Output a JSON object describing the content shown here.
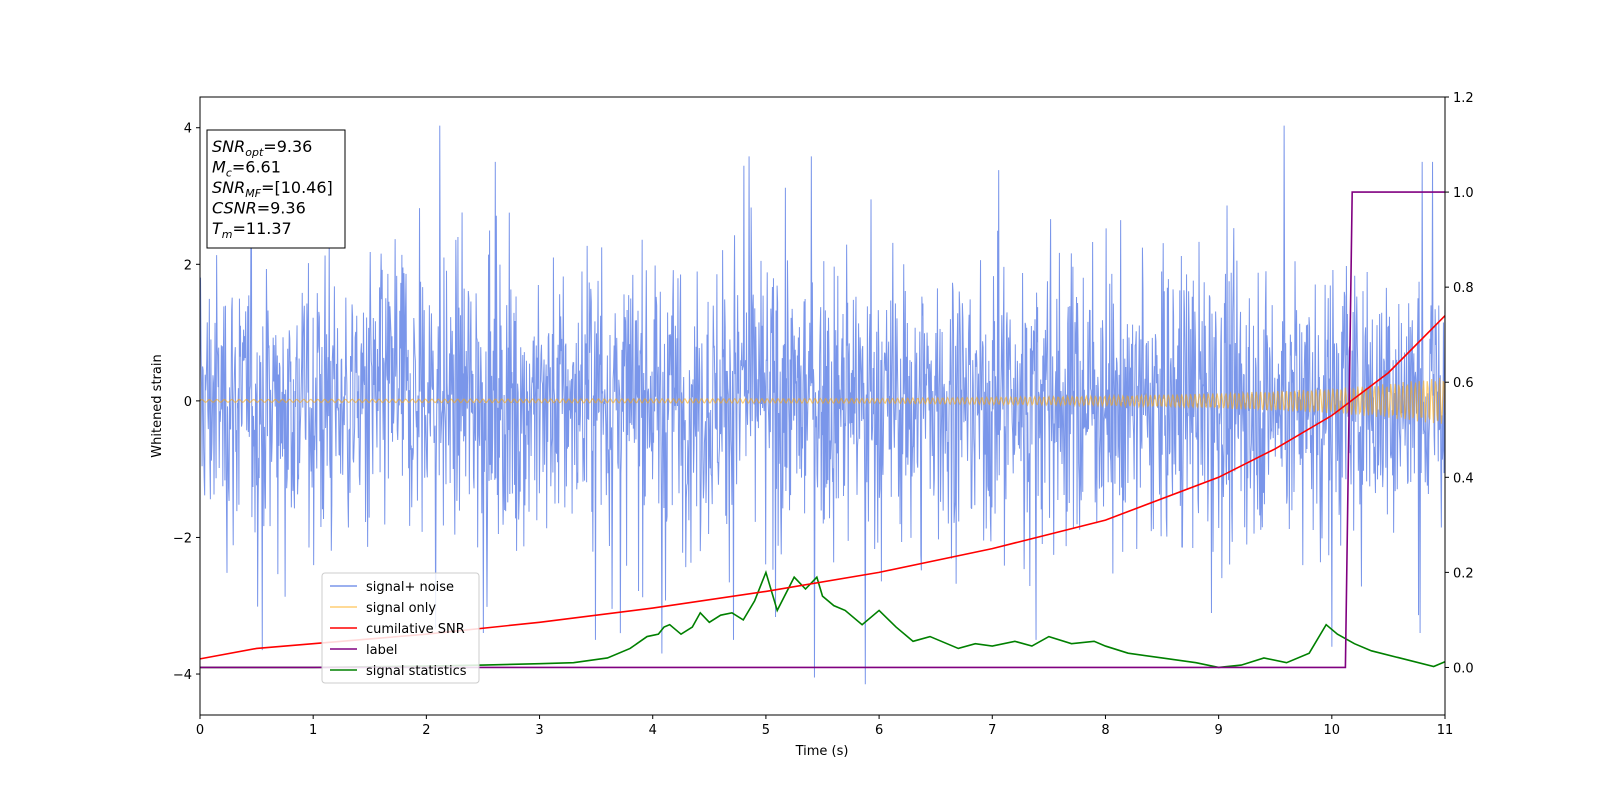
{
  "chart_data": {
    "type": "line",
    "xlabel": "Time (s)",
    "ylabel_left": "Whitened strain",
    "ylabel_right": "",
    "xlim": [
      0,
      11
    ],
    "ylim_left": [
      -4.6,
      4.45
    ],
    "ylim_right": [
      -0.1,
      1.2
    ],
    "xticks": [
      0,
      1,
      2,
      3,
      4,
      5,
      6,
      7,
      8,
      9,
      10,
      11
    ],
    "yticks_left": [
      -4,
      -2,
      0,
      2,
      4
    ],
    "yticks_right": [
      0.0,
      0.2,
      0.4,
      0.6,
      0.8,
      1.0,
      1.2
    ],
    "yticks_left_labels": [
      "−4",
      "−2",
      "0",
      "2",
      "4"
    ],
    "yticks_right_labels": [
      "0.0",
      "0.2",
      "0.4",
      "0.6",
      "0.8",
      "1.0",
      "1.2"
    ],
    "grid": false,
    "legend_position": "lower-left",
    "info_box": {
      "lines": [
        {
          "sym": "SNR",
          "sub": "opt",
          "val": "=9.36"
        },
        {
          "sym": "M",
          "sub": "c",
          "val": "=6.61"
        },
        {
          "sym": "SNR",
          "sub": "MF",
          "val": "=[10.46]"
        },
        {
          "sym": "CSNR",
          "sub": "",
          "val": "=9.36"
        },
        {
          "sym": "T",
          "sub": "m",
          "val": "=11.37"
        }
      ]
    },
    "series": [
      {
        "name": "signal+ noise",
        "axis": "left",
        "color": "#4169e1",
        "kind": "noise",
        "amplitude_typical": 2.2,
        "peaks": [
          [
            2.12,
            4.03
          ],
          [
            9.58,
            4.03
          ],
          [
            4.85,
            3.58
          ],
          [
            5.4,
            3.58
          ],
          [
            5.88,
            -4.15
          ],
          [
            5.43,
            -4.05
          ],
          [
            0.55,
            -3.65
          ],
          [
            4.08,
            -3.7
          ],
          [
            10.0,
            -3.6
          ],
          [
            10.78,
            -3.4
          ]
        ]
      },
      {
        "name": "signal only",
        "axis": "left",
        "color": "#ffa500",
        "kind": "chirp",
        "amplitude": {
          "x": [
            0,
            6,
            8,
            9,
            10,
            10.5,
            11
          ],
          "y": [
            0.02,
            0.035,
            0.07,
            0.11,
            0.18,
            0.25,
            0.35
          ]
        }
      },
      {
        "name": "cumilative SNR",
        "axis": "right",
        "color": "#ff0000",
        "x": [
          0,
          0.5,
          1,
          1.5,
          2,
          3,
          4,
          5,
          6,
          7,
          8,
          9,
          9.5,
          10,
          10.5,
          11
        ],
        "y": [
          0.018,
          0.04,
          0.05,
          0.06,
          0.07,
          0.095,
          0.125,
          0.16,
          0.2,
          0.25,
          0.31,
          0.4,
          0.46,
          0.53,
          0.62,
          0.74
        ]
      },
      {
        "name": "label",
        "axis": "right",
        "color": "#800080",
        "x": [
          0,
          10.12,
          10.18,
          11
        ],
        "y": [
          0,
          0,
          1,
          1
        ]
      },
      {
        "name": "signal statistics",
        "axis": "right",
        "color": "#008000",
        "x": [
          0,
          1,
          2,
          2.5,
          3,
          3.3,
          3.6,
          3.8,
          3.95,
          4.05,
          4.1,
          4.15,
          4.25,
          4.35,
          4.42,
          4.5,
          4.6,
          4.7,
          4.8,
          4.9,
          5.0,
          5.1,
          5.25,
          5.35,
          5.45,
          5.5,
          5.6,
          5.7,
          5.85,
          6.0,
          6.15,
          6.3,
          6.45,
          6.55,
          6.7,
          6.85,
          7.0,
          7.2,
          7.35,
          7.5,
          7.7,
          7.9,
          8.0,
          8.2,
          8.5,
          8.8,
          9.0,
          9.2,
          9.4,
          9.6,
          9.8,
          9.95,
          10.05,
          10.2,
          10.35,
          10.6,
          10.9,
          11.0
        ],
        "y": [
          0.0,
          0.0,
          0.003,
          0.005,
          0.008,
          0.01,
          0.02,
          0.04,
          0.065,
          0.07,
          0.085,
          0.09,
          0.07,
          0.085,
          0.115,
          0.095,
          0.11,
          0.115,
          0.1,
          0.14,
          0.2,
          0.12,
          0.19,
          0.165,
          0.19,
          0.15,
          0.13,
          0.12,
          0.09,
          0.12,
          0.085,
          0.055,
          0.065,
          0.055,
          0.04,
          0.05,
          0.045,
          0.055,
          0.045,
          0.065,
          0.05,
          0.055,
          0.045,
          0.03,
          0.02,
          0.01,
          0.0,
          0.005,
          0.02,
          0.01,
          0.03,
          0.09,
          0.07,
          0.05,
          0.035,
          0.02,
          0.002,
          0.012
        ]
      }
    ]
  }
}
